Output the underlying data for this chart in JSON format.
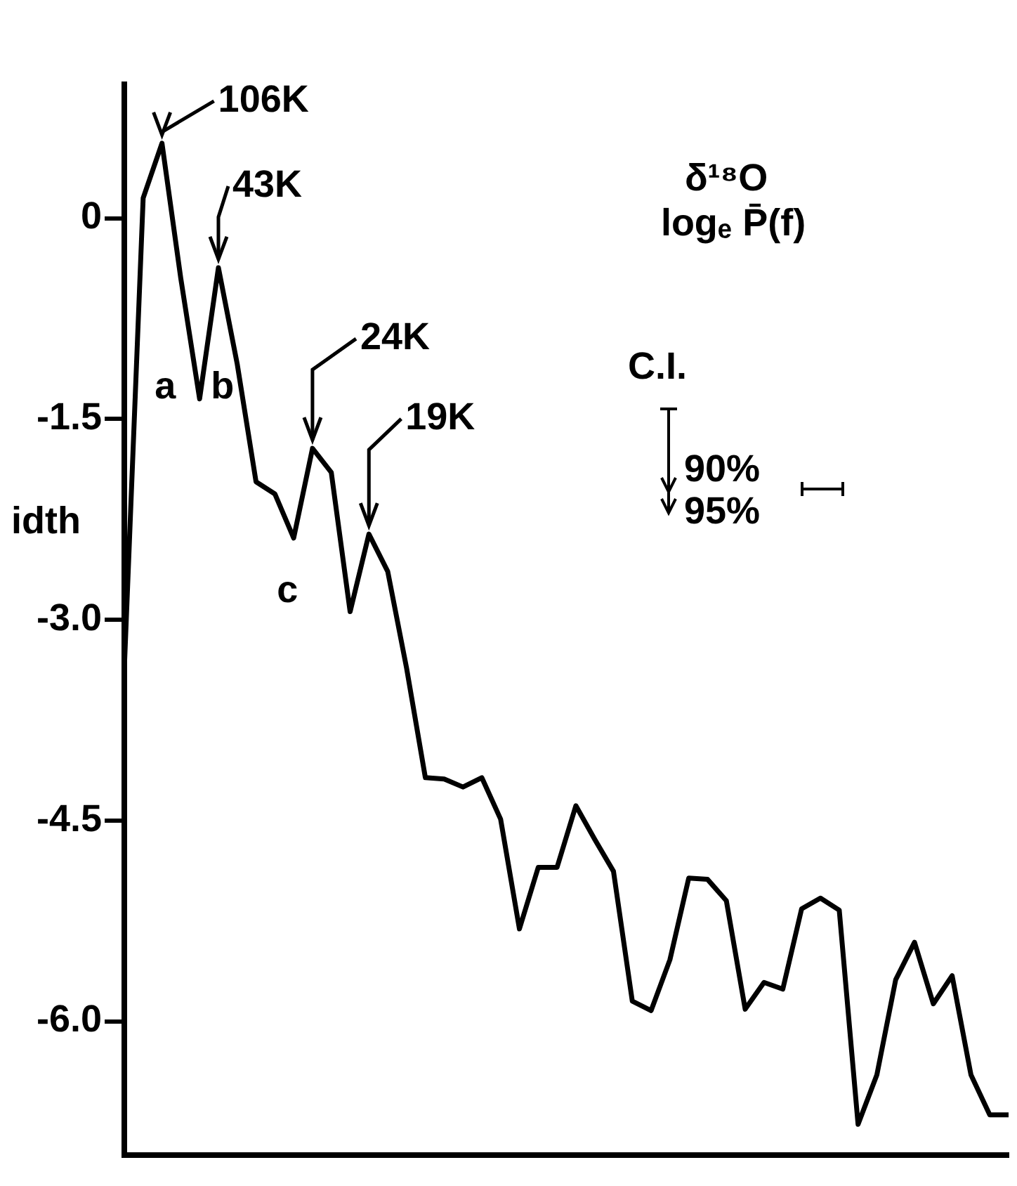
{
  "chart_data": {
    "type": "line",
    "title": "δ¹⁸O",
    "subtitle": "logₑ P̄(f)",
    "categories": [
      null,
      null,
      null,
      null,
      null,
      null,
      null,
      null,
      null,
      null,
      null,
      null,
      null,
      null,
      null,
      null,
      null,
      null,
      null,
      null,
      null,
      null,
      null,
      null,
      null,
      null,
      null,
      null,
      null,
      null,
      null,
      null,
      null,
      null,
      null,
      null,
      null,
      null,
      null,
      null,
      null,
      null,
      null,
      null,
      null,
      null,
      null,
      null
    ],
    "series": [
      {
        "color": "#000000",
        "values": [
          -3.36,
          0.15,
          0.56,
          -0.45,
          -1.35,
          -0.37,
          -1.09,
          -1.97,
          -2.06,
          -2.39,
          -1.72,
          -1.9,
          -2.94,
          -2.36,
          -2.64,
          -3.36,
          -4.18,
          -4.19,
          -4.25,
          -4.18,
          -4.49,
          -5.31,
          -4.85,
          -4.85,
          -4.39,
          -4.64,
          -4.88,
          -5.85,
          -5.92,
          -5.54,
          -4.93,
          -4.94,
          -5.1,
          -5.91,
          -5.71,
          -5.76,
          -5.16,
          -5.08,
          -5.17,
          -6.77,
          -6.4,
          -5.69,
          -5.41,
          -5.87,
          -5.66,
          -6.4,
          -6.7,
          -6.7
        ]
      }
    ],
    "ylim": [
      -7.0,
      1.0
    ],
    "yticks": [
      0,
      {
        "value": -1.5,
        "label": "-1.5"
      },
      {
        "value": -3.0,
        "label": "-3.0"
      },
      {
        "value": -4.5,
        "label": "-4.5"
      },
      {
        "value": -6.0,
        "label": "-6.0"
      }
    ],
    "annotations": [
      "106K",
      "43K",
      "24K",
      "19K",
      "a",
      "b",
      "c",
      "C.I.",
      "90%",
      "95%",
      "idth"
    ]
  }
}
